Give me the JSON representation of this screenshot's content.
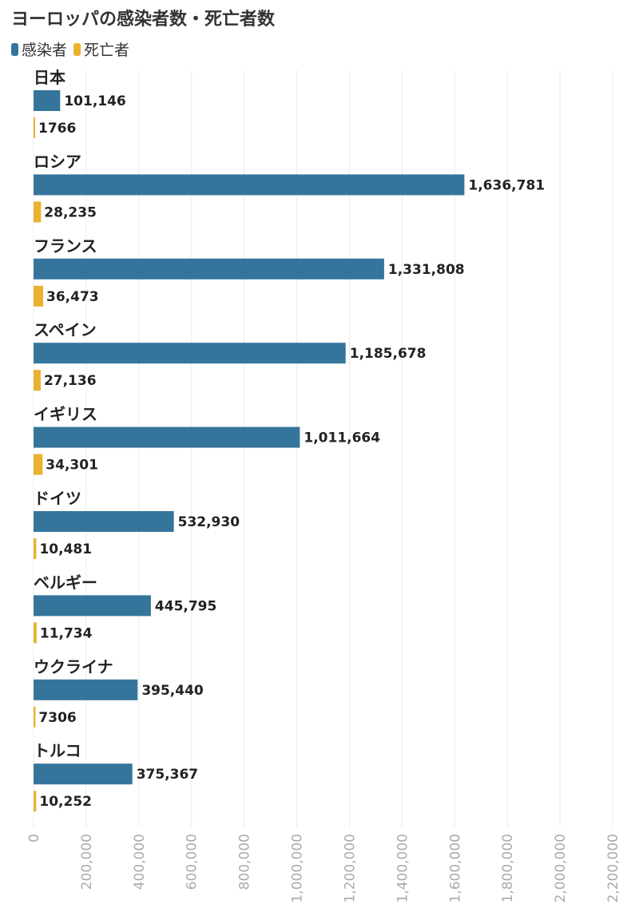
{
  "chart_data": {
    "type": "bar",
    "orientation": "horizontal",
    "title": "ヨーロッパの感染者数・死亡者数",
    "categories": [
      "日本",
      "ロシア",
      "フランス",
      "スペイン",
      "イギリス",
      "ドイツ",
      "ベルギー",
      "ウクライナ",
      "トルコ"
    ],
    "series": [
      {
        "name": "感染者",
        "color": "#35759c",
        "values": [
          101146,
          1636781,
          1331808,
          1185678,
          1011664,
          532930,
          445795,
          395440,
          375367
        ],
        "labels": [
          "101,146",
          "1,636,781",
          "1,331,808",
          "1,185,678",
          "1,011,664",
          "532,930",
          "445,795",
          "395,440",
          "375,367"
        ]
      },
      {
        "name": "死亡者",
        "color": "#eab22f",
        "values": [
          1766,
          28235,
          36473,
          27136,
          34301,
          10481,
          11734,
          7306,
          10252
        ],
        "labels": [
          "1766",
          "28,235",
          "36,473",
          "27,136",
          "34,301",
          "10,481",
          "11,734",
          "7306",
          "10,252"
        ]
      }
    ],
    "xlim": [
      0,
      2200000
    ],
    "ticks": [
      0,
      200000,
      400000,
      600000,
      800000,
      1000000,
      1200000,
      1400000,
      1600000,
      1800000,
      2000000,
      2200000
    ],
    "tick_labels": [
      "0",
      "200,000",
      "400,000",
      "600,000",
      "800,000",
      "1,000,000",
      "1,200,000",
      "1,400,000",
      "1,600,000",
      "1,800,000",
      "2,000,000",
      "2,200,000"
    ],
    "grid": true,
    "legend_position": "top-left"
  }
}
